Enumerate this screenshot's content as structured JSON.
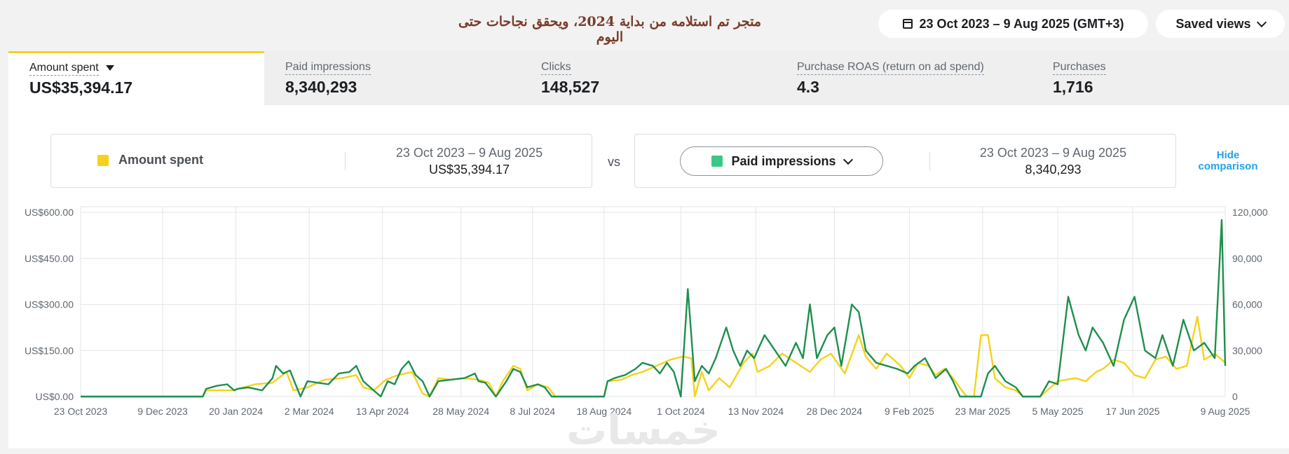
{
  "header": {
    "title": "متجر تم استلامه من بداية 2024، ويحقق نجاحات حتى اليوم",
    "date_range": "23 Oct 2023 – 9 Aug 2025 (GMT+3)",
    "saved_views": "Saved views"
  },
  "metrics": [
    {
      "label": "Amount spent",
      "value": "US$35,394.17"
    },
    {
      "label": "Paid impressions",
      "value": "8,340,293"
    },
    {
      "label": "Clicks",
      "value": "148,527"
    },
    {
      "label": "Purchase ROAS (return on ad spend)",
      "value": "4.3"
    },
    {
      "label": "Purchases",
      "value": "1,716"
    }
  ],
  "comparison": {
    "left": {
      "metric": "Amount spent",
      "range": "23 Oct 2023 – 9 Aug 2025",
      "total": "US$35,394.17"
    },
    "vs": "vs",
    "right": {
      "metric": "Paid impressions",
      "range": "23 Oct 2023 – 9 Aug 2025",
      "total": "8,340,293"
    },
    "hide_label": "Hide comparison"
  },
  "colors": {
    "amount_spent": "#f5d21b",
    "paid_impressions": "#1e8f4e",
    "legend_green": "#3cc788",
    "tab_active": "#f5d21b",
    "link": "#1fa3e8"
  },
  "watermark": "خمسات",
  "chart_data": {
    "type": "line",
    "x_tick_labels": [
      "23 Oct 2023",
      "9 Dec 2023",
      "20 Jan 2024",
      "2 Mar 2024",
      "13 Apr 2024",
      "28 May 2024",
      "8 Jul 2024",
      "18 Aug 2024",
      "1 Oct 2024",
      "13 Nov 2024",
      "28 Dec 2024",
      "9 Feb 2025",
      "23 Mar 2025",
      "5 May 2025",
      "17 Jun 2025",
      "9 Aug 2025"
    ],
    "x_tick_days": [
      0,
      47,
      89,
      131,
      173,
      218,
      259,
      300,
      344,
      387,
      432,
      475,
      517,
      560,
      603,
      656
    ],
    "y_left_ticks": [
      "US$0.00",
      "US$150.00",
      "US$300.00",
      "US$450.00",
      "US$600.00"
    ],
    "y_left_range": [
      0,
      600
    ],
    "y_right_ticks": [
      "0",
      "30,000",
      "60,000",
      "90,000",
      "120,000"
    ],
    "y_right_range": [
      0,
      120000
    ],
    "grid": true,
    "series": [
      {
        "name": "Amount spent",
        "axis": "left",
        "points": [
          [
            0,
            0
          ],
          [
            70,
            0
          ],
          [
            72,
            20
          ],
          [
            88,
            20
          ],
          [
            90,
            25
          ],
          [
            100,
            40
          ],
          [
            110,
            45
          ],
          [
            118,
            80
          ],
          [
            122,
            20
          ],
          [
            130,
            30
          ],
          [
            140,
            55
          ],
          [
            150,
            60
          ],
          [
            158,
            70
          ],
          [
            162,
            30
          ],
          [
            168,
            20
          ],
          [
            175,
            55
          ],
          [
            182,
            70
          ],
          [
            190,
            80
          ],
          [
            196,
            10
          ],
          [
            200,
            0
          ],
          [
            205,
            60
          ],
          [
            212,
            55
          ],
          [
            220,
            60
          ],
          [
            228,
            55
          ],
          [
            234,
            45
          ],
          [
            238,
            0
          ],
          [
            242,
            50
          ],
          [
            248,
            100
          ],
          [
            252,
            90
          ],
          [
            256,
            20
          ],
          [
            262,
            40
          ],
          [
            268,
            30
          ],
          [
            272,
            0
          ],
          [
            300,
            0
          ],
          [
            302,
            50
          ],
          [
            310,
            55
          ],
          [
            316,
            70
          ],
          [
            322,
            80
          ],
          [
            330,
            100
          ],
          [
            338,
            120
          ],
          [
            345,
            130
          ],
          [
            350,
            125
          ],
          [
            352,
            0
          ],
          [
            356,
            80
          ],
          [
            360,
            20
          ],
          [
            366,
            60
          ],
          [
            372,
            30
          ],
          [
            380,
            110
          ],
          [
            385,
            140
          ],
          [
            388,
            80
          ],
          [
            395,
            100
          ],
          [
            402,
            140
          ],
          [
            410,
            110
          ],
          [
            418,
            80
          ],
          [
            424,
            120
          ],
          [
            430,
            140
          ],
          [
            438,
            75
          ],
          [
            446,
            200
          ],
          [
            450,
            130
          ],
          [
            456,
            90
          ],
          [
            462,
            140
          ],
          [
            470,
            100
          ],
          [
            475,
            60
          ],
          [
            480,
            110
          ],
          [
            486,
            100
          ],
          [
            490,
            70
          ],
          [
            495,
            90
          ],
          [
            500,
            60
          ],
          [
            505,
            20
          ],
          [
            508,
            0
          ],
          [
            512,
            0
          ],
          [
            516,
            200
          ],
          [
            520,
            200
          ],
          [
            524,
            60
          ],
          [
            530,
            30
          ],
          [
            536,
            20
          ],
          [
            540,
            0
          ],
          [
            550,
            0
          ],
          [
            560,
            50
          ],
          [
            570,
            60
          ],
          [
            576,
            50
          ],
          [
            582,
            80
          ],
          [
            586,
            90
          ],
          [
            592,
            120
          ],
          [
            598,
            110
          ],
          [
            604,
            70
          ],
          [
            610,
            60
          ],
          [
            616,
            120
          ],
          [
            622,
            130
          ],
          [
            628,
            90
          ],
          [
            634,
            100
          ],
          [
            640,
            260
          ],
          [
            644,
            120
          ],
          [
            650,
            140
          ],
          [
            656,
            110
          ]
        ]
      },
      {
        "name": "Paid impressions",
        "axis": "right",
        "points": [
          [
            0,
            0
          ],
          [
            70,
            0
          ],
          [
            72,
            5000
          ],
          [
            78,
            7000
          ],
          [
            84,
            8000
          ],
          [
            88,
            4000
          ],
          [
            90,
            5000
          ],
          [
            96,
            6000
          ],
          [
            104,
            4000
          ],
          [
            110,
            12000
          ],
          [
            112,
            20000
          ],
          [
            116,
            15000
          ],
          [
            120,
            17000
          ],
          [
            126,
            0
          ],
          [
            130,
            10000
          ],
          [
            136,
            9000
          ],
          [
            142,
            8000
          ],
          [
            148,
            15000
          ],
          [
            154,
            16000
          ],
          [
            158,
            20000
          ],
          [
            162,
            10000
          ],
          [
            166,
            6000
          ],
          [
            172,
            0
          ],
          [
            176,
            10000
          ],
          [
            180,
            8000
          ],
          [
            184,
            18000
          ],
          [
            188,
            23000
          ],
          [
            192,
            14000
          ],
          [
            196,
            10000
          ],
          [
            200,
            0
          ],
          [
            205,
            10000
          ],
          [
            212,
            11000
          ],
          [
            220,
            12000
          ],
          [
            226,
            15000
          ],
          [
            228,
            10000
          ],
          [
            232,
            9000
          ],
          [
            238,
            0
          ],
          [
            244,
            10000
          ],
          [
            248,
            18000
          ],
          [
            252,
            16000
          ],
          [
            256,
            6000
          ],
          [
            262,
            8000
          ],
          [
            266,
            6000
          ],
          [
            270,
            0
          ],
          [
            300,
            0
          ],
          [
            302,
            10000
          ],
          [
            306,
            12000
          ],
          [
            312,
            14000
          ],
          [
            318,
            18000
          ],
          [
            322,
            22000
          ],
          [
            328,
            20000
          ],
          [
            332,
            15000
          ],
          [
            336,
            22000
          ],
          [
            340,
            16000
          ],
          [
            344,
            0
          ],
          [
            348,
            70000
          ],
          [
            352,
            10000
          ],
          [
            356,
            20000
          ],
          [
            360,
            15000
          ],
          [
            364,
            25000
          ],
          [
            370,
            45000
          ],
          [
            374,
            30000
          ],
          [
            378,
            20000
          ],
          [
            382,
            30000
          ],
          [
            386,
            25000
          ],
          [
            392,
            40000
          ],
          [
            398,
            30000
          ],
          [
            404,
            20000
          ],
          [
            410,
            35000
          ],
          [
            414,
            25000
          ],
          [
            418,
            60000
          ],
          [
            422,
            25000
          ],
          [
            428,
            40000
          ],
          [
            432,
            45000
          ],
          [
            436,
            20000
          ],
          [
            442,
            60000
          ],
          [
            446,
            55000
          ],
          [
            450,
            30000
          ],
          [
            456,
            22000
          ],
          [
            462,
            20000
          ],
          [
            468,
            18000
          ],
          [
            474,
            15000
          ],
          [
            478,
            20000
          ],
          [
            484,
            25000
          ],
          [
            490,
            12000
          ],
          [
            496,
            18000
          ],
          [
            500,
            10000
          ],
          [
            504,
            0
          ],
          [
            516,
            0
          ],
          [
            520,
            15000
          ],
          [
            524,
            20000
          ],
          [
            530,
            10000
          ],
          [
            536,
            6000
          ],
          [
            540,
            0
          ],
          [
            550,
            0
          ],
          [
            555,
            10000
          ],
          [
            560,
            8000
          ],
          [
            566,
            65000
          ],
          [
            572,
            40000
          ],
          [
            576,
            30000
          ],
          [
            580,
            45000
          ],
          [
            586,
            35000
          ],
          [
            592,
            20000
          ],
          [
            598,
            50000
          ],
          [
            604,
            65000
          ],
          [
            610,
            30000
          ],
          [
            616,
            25000
          ],
          [
            620,
            40000
          ],
          [
            626,
            20000
          ],
          [
            632,
            50000
          ],
          [
            638,
            30000
          ],
          [
            644,
            35000
          ],
          [
            650,
            25000
          ],
          [
            654,
            115000
          ],
          [
            656,
            20000
          ]
        ]
      }
    ]
  }
}
